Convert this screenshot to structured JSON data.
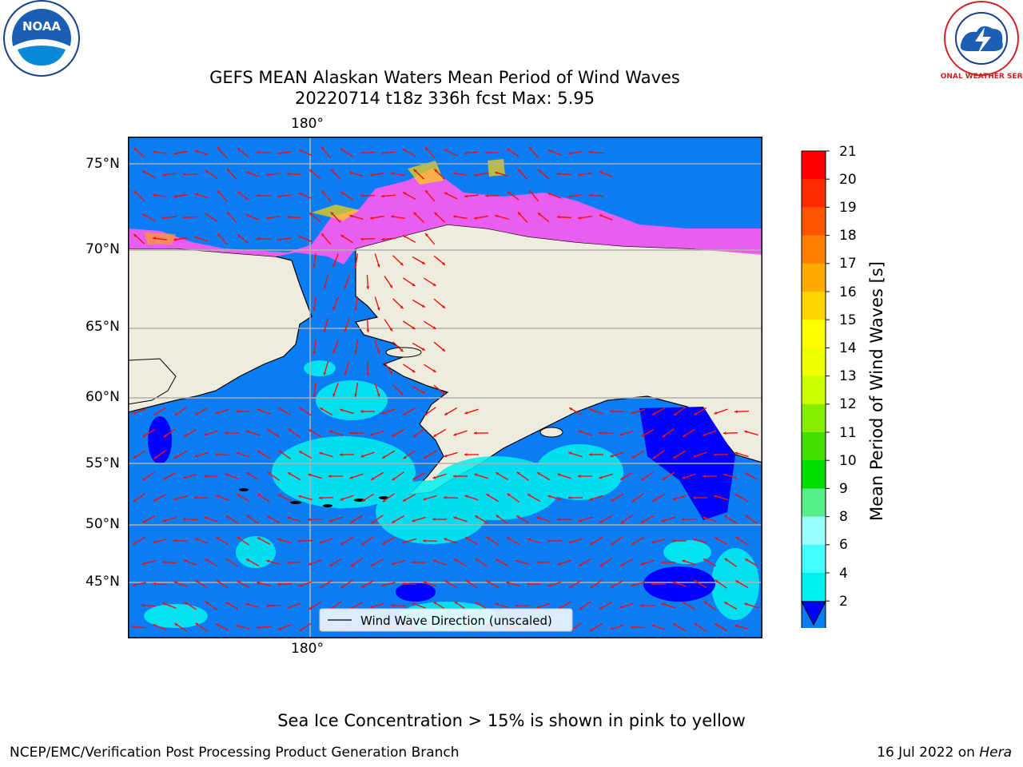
{
  "titles": {
    "line1": "GEFS MEAN Alaskan Waters Mean Period of Wind Waves",
    "line2": "20220714 t18z 336h fcst   Max: 5.95"
  },
  "logos": {
    "left": "NOAA",
    "right": "NATIONAL WEATHER SERVICE"
  },
  "map": {
    "lon_tick_top": "180°",
    "lon_tick_bottom": "180°",
    "lat_ticks": [
      "75°N",
      "70°N",
      "65°N",
      "60°N",
      "55°N",
      "50°N",
      "45°N"
    ],
    "legend_label": "Wind Wave Direction (unscaled)",
    "colors": {
      "ocean": "#0a7df5",
      "land": "#eeecdc",
      "ice": "#f75cf0",
      "arrow": "#ee1111",
      "grid": "#b0b0b0"
    }
  },
  "colorbar": {
    "title": "Mean Period of Wind Waves [s]",
    "ticks": [
      "21",
      "20",
      "19",
      "18",
      "17",
      "16",
      "15",
      "14",
      "13",
      "12",
      "11",
      "10",
      "9",
      "8",
      "6",
      "4",
      "2"
    ],
    "colors": [
      "#ff0000",
      "#ff2a00",
      "#ff5500",
      "#ff8000",
      "#ffaa00",
      "#ffd500",
      "#ffff00",
      "#eeff00",
      "#ccff00",
      "#88ee00",
      "#44dd00",
      "#00dd00",
      "#55ee88",
      "#99ffff",
      "#44ffff",
      "#00f0f0",
      "#0a7df5"
    ],
    "under_color": "#0000ff"
  },
  "note": "Sea Ice Concentration > 15% is shown in pink to yellow",
  "footer": {
    "left": "NCEP/EMC/Verification Post Processing Product Generation Branch",
    "right_prefix": "16 Jul 2022 on ",
    "right_host": "Hera"
  }
}
